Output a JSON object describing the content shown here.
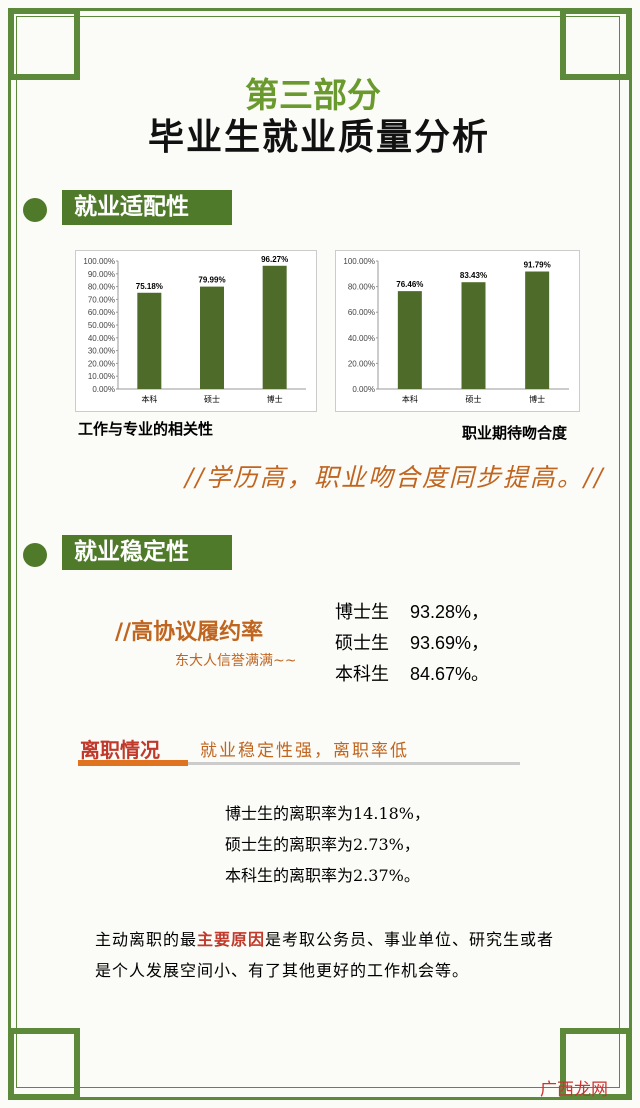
{
  "header": {
    "part": "第三部分",
    "title": "毕业生就业质量分析"
  },
  "fit_section": {
    "heading": "就业适配性",
    "charts": [
      {
        "type": "bar",
        "title": "工作与专业的相关性",
        "categories": [
          "本科",
          "硕士",
          "博士"
        ],
        "values": [
          75.18,
          79.99,
          96.27
        ],
        "value_labels": [
          "75.18%",
          "79.99%",
          "96.27%"
        ],
        "color": "#4e6b2a",
        "ylim": [
          0,
          100
        ],
        "yticks": [
          {
            "value": 0,
            "label": "0.00%"
          },
          {
            "value": 10,
            "label": "10.00%"
          },
          {
            "value": 20,
            "label": "20.00%"
          },
          {
            "value": 30,
            "label": "30.00%"
          },
          {
            "value": 40,
            "label": "40.00%"
          },
          {
            "value": 50,
            "label": "50.00%"
          },
          {
            "value": 60,
            "label": "60.00%"
          },
          {
            "value": 70,
            "label": "70.00%"
          },
          {
            "value": 80,
            "label": "80.00%"
          },
          {
            "value": 90,
            "label": "90.00%"
          },
          {
            "value": 100,
            "label": "100.00%"
          }
        ]
      },
      {
        "type": "bar",
        "title": "职业期待吻合度",
        "categories": [
          "本科",
          "硕士",
          "博士"
        ],
        "values": [
          76.46,
          83.43,
          91.79
        ],
        "value_labels": [
          "76.46%",
          "83.43%",
          "91.79%"
        ],
        "color": "#4e6b2a",
        "ylim": [
          0,
          100
        ],
        "yticks": [
          {
            "value": 0,
            "label": "0.00%"
          },
          {
            "value": 20,
            "label": "20.00%"
          },
          {
            "value": 40,
            "label": "40.00%"
          },
          {
            "value": 60,
            "label": "60.00%"
          },
          {
            "value": 80,
            "label": "80.00%"
          },
          {
            "value": 100,
            "label": "100.00%"
          }
        ]
      }
    ],
    "slogan": "//学历高，职业吻合度同步提高。//"
  },
  "stability_section": {
    "heading": "就业稳定性",
    "subheading": "//高协议履约率",
    "note": "东大人信誉满满~~",
    "rates": [
      {
        "label": "博士生",
        "value": "93.28%，"
      },
      {
        "label": "硕士生",
        "value": "93.69%，"
      },
      {
        "label": "本科生",
        "value": "84.67%。"
      }
    ],
    "resign": {
      "title": "离职情况",
      "tagline": "就业稳定性强，离职率低",
      "lines": [
        "博士生的离职率为14.18%，",
        "硕士生的离职率为2.73%，",
        "本科生的离职率为2.37%。"
      ],
      "reason": [
        "主动离职的最",
        "主要原因",
        "是考取公务员、事业单位、研究生或者是个人发展空间小、有了其他更好的工作机会等。"
      ]
    }
  },
  "watermark": "广西龙网"
}
